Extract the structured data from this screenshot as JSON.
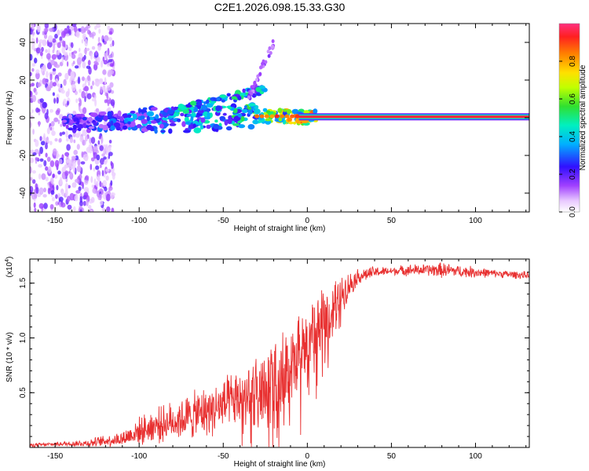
{
  "title": "C2E1.2026.098.15.33.G30",
  "chart_data": [
    {
      "type": "heatmap",
      "name": "spectrogram",
      "xlabel": "Height of straight line (km)",
      "ylabel": "Frequency (Hz)",
      "xlim": [
        -165,
        132
      ],
      "ylim": [
        -50,
        50
      ],
      "xticks": [
        -150,
        -100,
        -50,
        0,
        50,
        100
      ],
      "yticks": [
        -40,
        -20,
        0,
        20,
        40
      ],
      "xticklabels": [
        "-150",
        "-100",
        "-50",
        "0",
        "50",
        "100"
      ],
      "yticklabels": [
        "-40",
        "-20",
        "0",
        "20",
        "40"
      ],
      "colorbar": {
        "label": "Normalized spectral amplitude",
        "range": [
          0,
          1
        ],
        "ticks": [
          0.0,
          0.2,
          0.4,
          0.6,
          0.8
        ],
        "ticklabels": [
          "0.0",
          "0.2",
          "0.4",
          "0.6",
          "0.8"
        ]
      },
      "ridge": {
        "description": "dominant carrier line",
        "x": [
          -145,
          -120,
          -100,
          -80,
          -60,
          -40,
          -20,
          0,
          20,
          60,
          100,
          132
        ],
        "frequency": [
          -3,
          -2,
          -1,
          -1,
          -1,
          1,
          1,
          0,
          0.5,
          0.5,
          0.5,
          0.5
        ],
        "amplitude": [
          0.25,
          0.3,
          0.35,
          0.4,
          0.45,
          0.5,
          0.7,
          0.85,
          0.9,
          0.9,
          0.9,
          0.9
        ]
      },
      "noise_region_x": [
        -165,
        -115
      ]
    },
    {
      "type": "line",
      "name": "snr",
      "xlabel": "Height of straight line (km)",
      "ylabel": "SNR (10 * v/v)",
      "yscale_label": "(x10",
      "yscale_exponent": "4",
      "xlim": [
        -165,
        132
      ],
      "ylim": [
        0,
        1.72
      ],
      "xticks": [
        -150,
        -100,
        -50,
        0,
        50,
        100
      ],
      "yticks": [
        0.5,
        1.0,
        1.5
      ],
      "xticklabels": [
        "-150",
        "-100",
        "-50",
        "0",
        "50",
        "100"
      ],
      "yticklabels": [
        "0.5",
        "1.0",
        "1.5"
      ],
      "color": "#e83030",
      "x": [
        -165,
        -150,
        -130,
        -110,
        -100,
        -90,
        -80,
        -70,
        -60,
        -50,
        -40,
        -30,
        -20,
        -10,
        0,
        10,
        20,
        30,
        40,
        50,
        60,
        70,
        80,
        90,
        100,
        110,
        120,
        132
      ],
      "y": [
        0.02,
        0.03,
        0.04,
        0.08,
        0.15,
        0.2,
        0.24,
        0.28,
        0.33,
        0.38,
        0.44,
        0.52,
        0.62,
        0.78,
        0.95,
        1.15,
        1.4,
        1.56,
        1.6,
        1.61,
        1.62,
        1.62,
        1.62,
        1.61,
        1.6,
        1.59,
        1.58,
        1.57
      ],
      "noise_amplitude": [
        0.01,
        0.01,
        0.02,
        0.04,
        0.07,
        0.09,
        0.1,
        0.12,
        0.13,
        0.14,
        0.15,
        0.17,
        0.18,
        0.2,
        0.2,
        0.18,
        0.1,
        0.04,
        0.03,
        0.02,
        0.03,
        0.03,
        0.04,
        0.03,
        0.03,
        0.02,
        0.02,
        0.02
      ]
    }
  ]
}
